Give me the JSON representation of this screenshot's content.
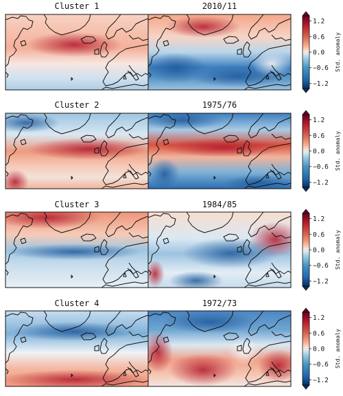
{
  "panels": [
    {
      "title": "Cluster 1",
      "pattern": "c1"
    },
    {
      "title": "2010/11",
      "pattern": "y1"
    },
    {
      "title": "Cluster 2",
      "pattern": "c2"
    },
    {
      "title": "1975/76",
      "pattern": "y2"
    },
    {
      "title": "Cluster 3",
      "pattern": "c3"
    },
    {
      "title": "1984/85",
      "pattern": "y3"
    },
    {
      "title": "Cluster 4",
      "pattern": "c4"
    },
    {
      "title": "1972/73",
      "pattern": "y4"
    }
  ],
  "colorbar": {
    "label": "Std. anomaly",
    "ticks": [
      "1.2",
      "0.6",
      "0.0",
      "−0.6",
      "−1.2"
    ],
    "tick_values": [
      1.2,
      0.6,
      0.0,
      -0.6,
      -1.2
    ],
    "range": [
      -1.4,
      1.4
    ],
    "colors": {
      "strong_positive": "#a9182c",
      "neutral": "#f7f7f7",
      "strong_negative": "#1f5a9c"
    }
  }
}
